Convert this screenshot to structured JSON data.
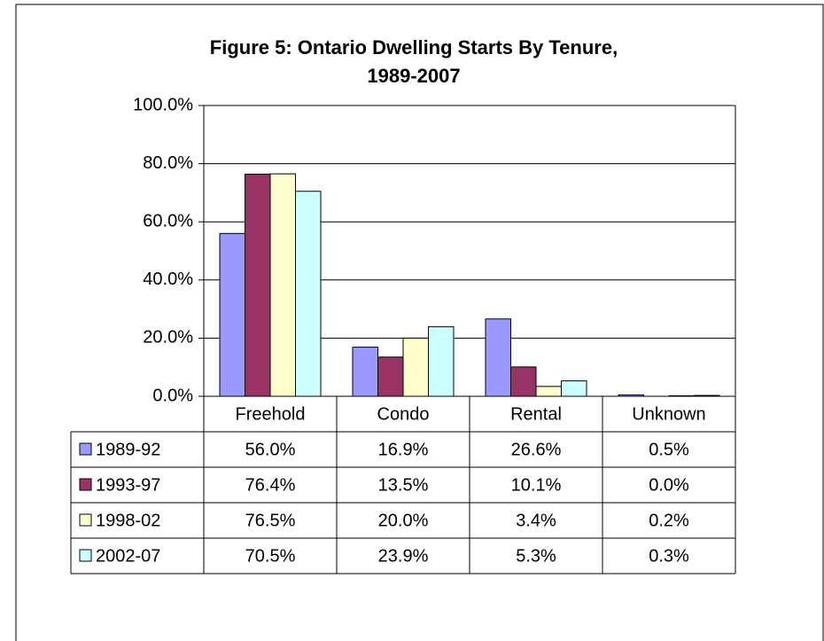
{
  "chart_data": {
    "type": "bar",
    "title": "Figure 5:  Ontario Dwelling Starts By Tenure, 1989-2007",
    "categories": [
      "Freehold",
      "Condo",
      "Rental",
      "Unknown"
    ],
    "series": [
      {
        "name": "1989-92",
        "color": "#9999ff",
        "values": [
          56.0,
          16.9,
          26.6,
          0.5
        ],
        "value_labels": [
          "56.0%",
          "16.9%",
          "26.6%",
          "0.5%"
        ]
      },
      {
        "name": "1993-97",
        "color": "#993366",
        "values": [
          76.4,
          13.5,
          10.1,
          0.0
        ],
        "value_labels": [
          "76.4%",
          "13.5%",
          "10.1%",
          "0.0%"
        ]
      },
      {
        "name": "1998-02",
        "color": "#ffffcc",
        "values": [
          76.5,
          20.0,
          3.4,
          0.2
        ],
        "value_labels": [
          "76.5%",
          "20.0%",
          "3.4%",
          "0.2%"
        ]
      },
      {
        "name": "2002-07",
        "color": "#ccffff",
        "values": [
          70.5,
          23.9,
          5.3,
          0.3
        ],
        "value_labels": [
          "70.5%",
          "23.9%",
          "5.3%",
          "0.3%"
        ]
      }
    ],
    "ylim": [
      0,
      100
    ],
    "yticks": [
      {
        "value": 0,
        "label": "0.0%"
      },
      {
        "value": 20,
        "label": "20.0%"
      },
      {
        "value": 40,
        "label": "40.0%"
      },
      {
        "value": 60,
        "label": "60.0%"
      },
      {
        "value": 80,
        "label": "80.0%"
      },
      {
        "value": 100,
        "label": "100.0%"
      }
    ],
    "grid": true,
    "data_table": true
  }
}
